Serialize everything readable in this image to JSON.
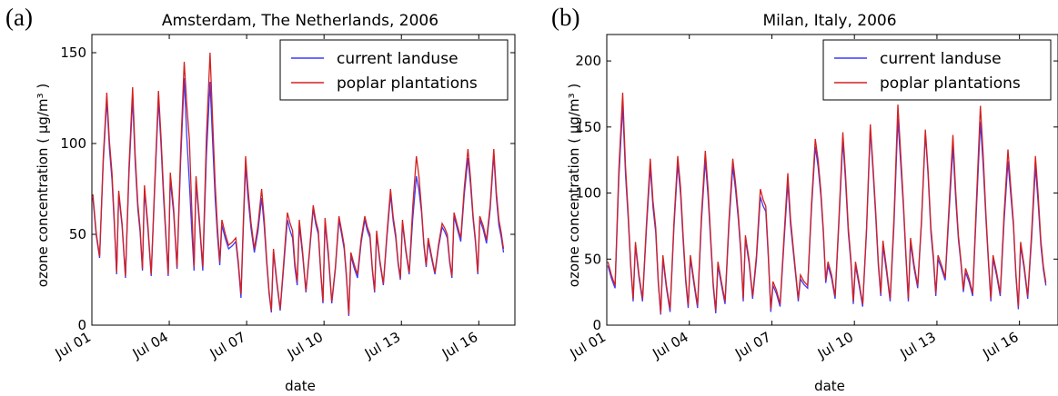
{
  "colors": {
    "current": "#3a3aff",
    "poplar": "#d42020",
    "axes": "#000000"
  },
  "chart_data": [
    {
      "type": "line",
      "panel_label": "(a)",
      "title": "Amsterdam, The Netherlands, 2006",
      "xlabel": "date",
      "ylabel": "ozone concentration ( μg/m³ )",
      "ylim": [
        0,
        160
      ],
      "xlim": [
        0,
        16.4
      ],
      "yticks": [
        0,
        50,
        100,
        150
      ],
      "xtick_values": [
        0,
        3,
        6,
        9,
        12,
        15
      ],
      "xtick_labels": [
        "Jul 01",
        "Jul 04",
        "Jul 07",
        "Jul 10",
        "Jul 13",
        "Jul 16"
      ],
      "legend_position": "upper-right",
      "series": [
        {
          "name": "current landuse",
          "color": "#3a3aff",
          "daily": [
            [
              70,
              37,
              124,
              80,
              28
            ],
            [
              72,
              26,
              125,
              64,
              30
            ],
            [
              74,
              27,
              124,
              70,
              27
            ],
            [
              80,
              31,
              136,
              78,
              30
            ],
            [
              79,
              30,
              134,
              70,
              33
            ],
            [
              55,
              42,
              46,
              15,
              88
            ],
            [
              72,
              40,
              70,
              34,
              7
            ],
            [
              40,
              8,
              58,
              48,
              22
            ],
            [
              55,
              18,
              64,
              50,
              12
            ],
            [
              56,
              12,
              58,
              42,
              5
            ],
            [
              38,
              26,
              58,
              48,
              18
            ],
            [
              50,
              22,
              72,
              48,
              25
            ],
            [
              56,
              28,
              82,
              62,
              32
            ],
            [
              46,
              28,
              54,
              48,
              26
            ],
            [
              60,
              46,
              92,
              58,
              28
            ],
            [
              58,
              45,
              94,
              55,
              40
            ]
          ]
        },
        {
          "name": "poplar plantations",
          "color": "#d42020",
          "daily": [
            [
              72,
              38,
              128,
              84,
              29
            ],
            [
              74,
              27,
              131,
              67,
              31
            ],
            [
              77,
              28,
              129,
              74,
              28
            ],
            [
              84,
              32,
              145,
              102,
              32
            ],
            [
              82,
              32,
              150,
              78,
              35
            ],
            [
              58,
              44,
              48,
              17,
              93
            ],
            [
              77,
              42,
              75,
              36,
              8
            ],
            [
              42,
              9,
              62,
              52,
              24
            ],
            [
              58,
              19,
              66,
              52,
              13
            ],
            [
              59,
              13,
              60,
              44,
              6
            ],
            [
              40,
              28,
              60,
              50,
              19
            ],
            [
              52,
              23,
              75,
              50,
              26
            ],
            [
              58,
              29,
              93,
              64,
              33
            ],
            [
              48,
              29,
              56,
              50,
              27
            ],
            [
              62,
              48,
              97,
              60,
              29
            ],
            [
              60,
              47,
              97,
              58,
              42
            ]
          ]
        }
      ]
    },
    {
      "type": "line",
      "panel_label": "(b)",
      "title": "Milan, Italy, 2006",
      "xlabel": "date",
      "ylabel": "ozone concentration ( μg/m³ )",
      "ylim": [
        0,
        220
      ],
      "xlim": [
        0,
        16.4
      ],
      "yticks": [
        0,
        50,
        100,
        150,
        200
      ],
      "xtick_values": [
        0,
        3,
        6,
        9,
        12,
        15
      ],
      "xtick_labels": [
        "Jul 01",
        "Jul 04",
        "Jul 07",
        "Jul 10",
        "Jul 13",
        "Jul 16"
      ],
      "legend_position": "upper-right",
      "series": [
        {
          "name": "current landuse",
          "color": "#3a3aff",
          "daily": [
            [
              45,
              28,
              166,
              80,
              18
            ],
            [
              60,
              18,
              120,
              70,
              8
            ],
            [
              50,
              10,
              122,
              62,
              13
            ],
            [
              50,
              13,
              125,
              62,
              9
            ],
            [
              45,
              16,
              120,
              80,
              18
            ],
            [
              65,
              20,
              97,
              86,
              10
            ],
            [
              30,
              14,
              108,
              55,
              18
            ],
            [
              35,
              28,
              135,
              98,
              32
            ],
            [
              45,
              20,
              140,
              70,
              16
            ],
            [
              45,
              14,
              148,
              80,
              22
            ],
            [
              60,
              18,
              156,
              90,
              18
            ],
            [
              62,
              28,
              145,
              70,
              22
            ],
            [
              50,
              34,
              135,
              65,
              25
            ],
            [
              40,
              22,
              154,
              80,
              18
            ],
            [
              50,
              22,
              124,
              75,
              12
            ],
            [
              60,
              20,
              120,
              60,
              30
            ]
          ]
        },
        {
          "name": "poplar plantations",
          "color": "#d42020",
          "daily": [
            [
              48,
              30,
              176,
              84,
              20
            ],
            [
              63,
              20,
              126,
              74,
              9
            ],
            [
              53,
              12,
              128,
              66,
              15
            ],
            [
              53,
              15,
              132,
              66,
              11
            ],
            [
              48,
              18,
              126,
              84,
              20
            ],
            [
              68,
              22,
              103,
              90,
              12
            ],
            [
              33,
              16,
              115,
              58,
              20
            ],
            [
              38,
              30,
              141,
              102,
              34
            ],
            [
              48,
              22,
              146,
              74,
              18
            ],
            [
              48,
              16,
              152,
              84,
              24
            ],
            [
              64,
              20,
              167,
              94,
              20
            ],
            [
              66,
              30,
              148,
              74,
              24
            ],
            [
              53,
              36,
              144,
              68,
              27
            ],
            [
              43,
              24,
              166,
              84,
              20
            ],
            [
              53,
              24,
              133,
              78,
              14
            ],
            [
              63,
              22,
              128,
              64,
              32
            ]
          ]
        }
      ]
    }
  ]
}
